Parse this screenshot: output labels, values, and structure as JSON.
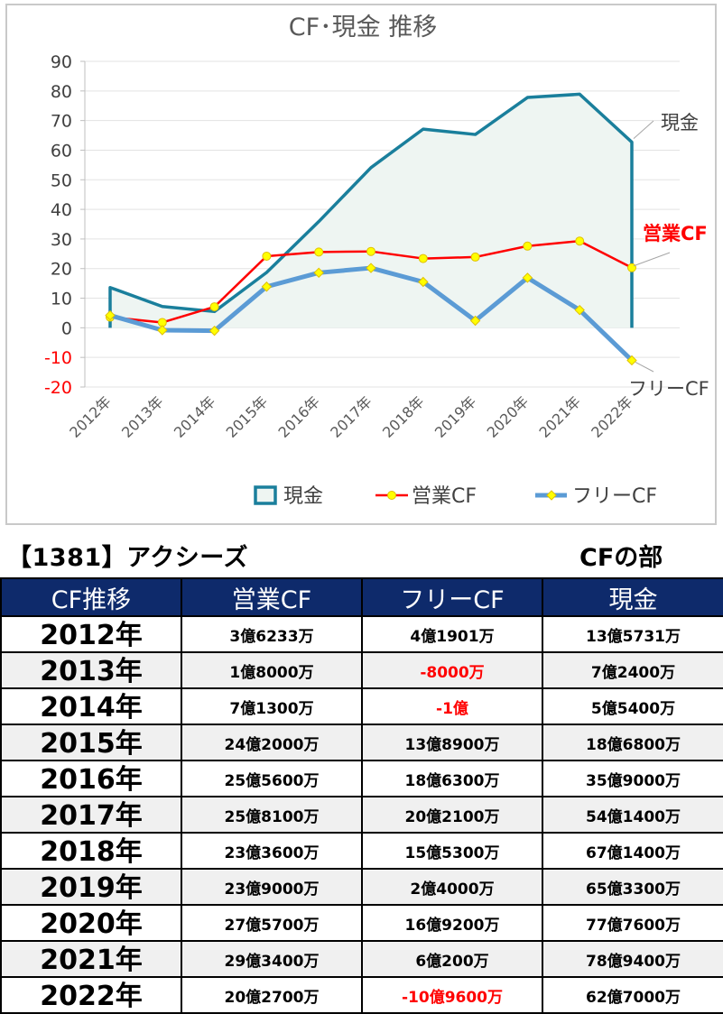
{
  "chart_data": {
    "type": "line",
    "title": "CF･現金 推移",
    "categories": [
      "2012年",
      "2013年",
      "2014年",
      "2015年",
      "2016年",
      "2017年",
      "2018年",
      "2019年",
      "2020年",
      "2021年",
      "2022年"
    ],
    "ylim": [
      -20,
      90
    ],
    "y_ticks": [
      90,
      80,
      70,
      60,
      50,
      40,
      30,
      20,
      10,
      0,
      -10,
      -20
    ],
    "grid": true,
    "legend_position": "bottom",
    "series": [
      {
        "name": "現金",
        "style": "area",
        "color": "#1a7f9c",
        "fill": "#eef5f2",
        "values": [
          13.6,
          7.2,
          5.5,
          18.7,
          35.9,
          54.1,
          67.1,
          65.3,
          77.8,
          78.9,
          62.7
        ]
      },
      {
        "name": "営業CF",
        "style": "line",
        "color": "#ff0000",
        "marker_color": "#ffff00",
        "values": [
          3.6,
          1.8,
          7.1,
          24.2,
          25.6,
          25.8,
          23.4,
          23.9,
          27.6,
          29.3,
          20.3
        ]
      },
      {
        "name": "フリーCF",
        "style": "line",
        "color": "#5b9bd5",
        "marker_color": "#ffff00",
        "values": [
          4.2,
          -0.8,
          -1.0,
          13.9,
          18.6,
          20.2,
          15.5,
          2.4,
          16.9,
          6.0,
          -11.0
        ]
      }
    ],
    "end_labels": [
      "現金",
      "営業CF",
      "フリーCF"
    ]
  },
  "table": {
    "company": "【1381】アクシーズ",
    "section": "CFの部",
    "headers": [
      "CF推移",
      "営業CF",
      "フリーCF",
      "現金"
    ],
    "rows": [
      {
        "year": "2012年",
        "op": "3億6233万",
        "free": "4億1901万",
        "cash": "13億5731万",
        "free_negative": false
      },
      {
        "year": "2013年",
        "op": "1億8000万",
        "free": "-8000万",
        "cash": "7億2400万",
        "free_negative": true
      },
      {
        "year": "2014年",
        "op": "7億1300万",
        "free": "-1億",
        "cash": "5億5400万",
        "free_negative": true
      },
      {
        "year": "2015年",
        "op": "24億2000万",
        "free": "13億8900万",
        "cash": "18億6800万",
        "free_negative": false
      },
      {
        "year": "2016年",
        "op": "25億5600万",
        "free": "18億6300万",
        "cash": "35億9000万",
        "free_negative": false
      },
      {
        "year": "2017年",
        "op": "25億8100万",
        "free": "20億2100万",
        "cash": "54億1400万",
        "free_negative": false
      },
      {
        "year": "2018年",
        "op": "23億3600万",
        "free": "15億5300万",
        "cash": "67億1400万",
        "free_negative": false
      },
      {
        "year": "2019年",
        "op": "23億9000万",
        "free": "2億4000万",
        "cash": "65億3300万",
        "free_negative": false
      },
      {
        "year": "2020年",
        "op": "27億5700万",
        "free": "16億9200万",
        "cash": "77億7600万",
        "free_negative": false
      },
      {
        "year": "2021年",
        "op": "29億3400万",
        "free": "6億200万",
        "cash": "78億9400万",
        "free_negative": false
      },
      {
        "year": "2022年",
        "op": "20億2700万",
        "free": "-10億9600万",
        "cash": "62億7000万",
        "free_negative": true
      }
    ]
  }
}
